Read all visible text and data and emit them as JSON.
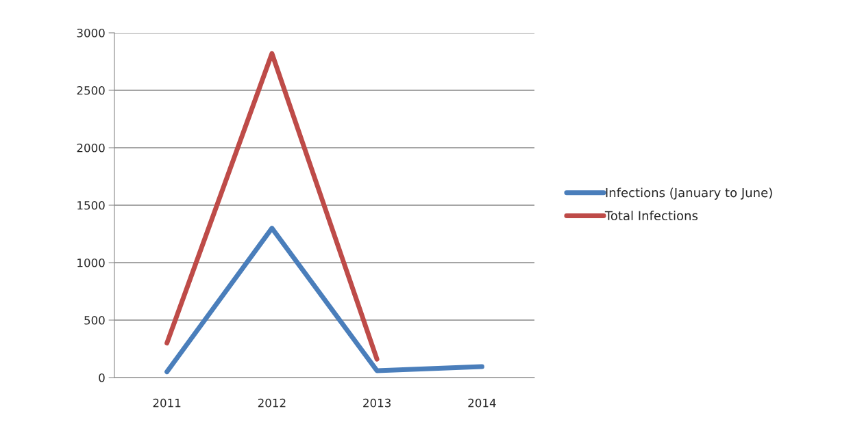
{
  "chart_data": {
    "type": "line",
    "categories": [
      "2011",
      "2012",
      "2013",
      "2014"
    ],
    "series": [
      {
        "name": "Infections (January to June)",
        "color": "#4a7ebb",
        "values": [
          50,
          1300,
          60,
          95
        ]
      },
      {
        "name": "Total Infections",
        "color": "#be4b48",
        "values": [
          300,
          2820,
          160,
          null
        ]
      }
    ],
    "ylim": [
      0,
      3000
    ],
    "yticks": [
      0,
      500,
      1000,
      1500,
      2000,
      2500,
      3000
    ],
    "grid": "y",
    "legend": "right",
    "marker": "none",
    "line_style": "solid"
  }
}
